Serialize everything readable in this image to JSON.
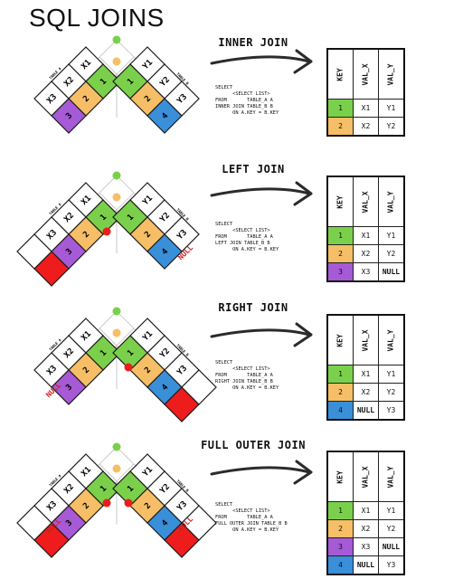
{
  "title": "SQL JOINS",
  "table_a_label": "TABLE A",
  "table_b_label": "TABLE B",
  "table_a_cells": [
    "1",
    "2",
    "3",
    "X1",
    "X2",
    "X3"
  ],
  "table_b_cells": [
    "1",
    "2",
    "4",
    "Y1",
    "Y2",
    "Y3"
  ],
  "colors": {
    "key1": "#7bd04b",
    "key2": "#f6be66",
    "key3": "#a65ad6",
    "key4": "#3a8fd9",
    "null_fill": "#ee1c1c",
    "null_text": "#cc1f1f",
    "node_green": "#7bd04b",
    "node_orange": "#f6be66",
    "node_red": "#ee1c1c"
  },
  "headers": [
    "KEY",
    "VAL_X",
    "VAL_Y"
  ],
  "null_label": "NULL",
  "sections": [
    {
      "id": "inner",
      "title": "INNER JOIN",
      "sql": [
        "SELECT",
        "      <SELECT LIST>",
        "FROM       TABLE_A A",
        "INNER JOIN TABLE_B B",
        "      ON A.KEY = B.KEY"
      ],
      "rows": [
        [
          "1",
          "X1",
          "Y1"
        ],
        [
          "2",
          "X2",
          "Y2"
        ]
      ],
      "row_colors": [
        "key1",
        "key2"
      ],
      "diagram": {
        "a_null": false,
        "b_null": false,
        "red_nodes": [],
        "a_label_visible": false
      }
    },
    {
      "id": "left",
      "title": "LEFT JOIN",
      "sql": [
        "SELECT",
        "      <SELECT LIST>",
        "FROM       TABLE_A A",
        "LEFT JOIN TABLE_B B",
        "      ON A.KEY = B.KEY"
      ],
      "rows": [
        [
          "1",
          "X1",
          "Y1"
        ],
        [
          "2",
          "X2",
          "Y2"
        ],
        [
          "3",
          "X3",
          "NULL"
        ]
      ],
      "row_colors": [
        "key1",
        "key2",
        "key3"
      ],
      "diagram": {
        "a_null": false,
        "b_null": true,
        "red_nodes": [
          "left"
        ],
        "a_label_visible": true
      }
    },
    {
      "id": "right",
      "title": "RIGHT JOIN",
      "sql": [
        "SELECT",
        "      <SELECT LIST>",
        "FROM       TABLE_A A",
        "RIGHT JOIN TABLE_B B",
        "      ON A.KEY = B.KEY"
      ],
      "rows": [
        [
          "1",
          "X1",
          "Y1"
        ],
        [
          "2",
          "X2",
          "Y2"
        ],
        [
          "4",
          "NULL",
          "Y3"
        ]
      ],
      "row_colors": [
        "key1",
        "key2",
        "key4"
      ],
      "diagram": {
        "a_null": true,
        "b_null": false,
        "red_nodes": [
          "right"
        ],
        "a_label_visible": true
      }
    },
    {
      "id": "full",
      "title": "FULL OUTER JOIN",
      "sql": [
        "SELECT",
        "      <SELECT LIST>",
        "FROM       TABLE_A A",
        "FULL OUTER JOIN TABLE_B B",
        "      ON A.KEY = B.KEY"
      ],
      "rows": [
        [
          "1",
          "X1",
          "Y1"
        ],
        [
          "2",
          "X2",
          "Y2"
        ],
        [
          "3",
          "X3",
          "NULL"
        ],
        [
          "4",
          "NULL",
          "Y3"
        ]
      ],
      "row_colors": [
        "key1",
        "key2",
        "key3",
        "key4"
      ],
      "diagram": {
        "a_null": true,
        "b_null": true,
        "red_nodes": [
          "left",
          "right"
        ],
        "a_label_visible": true
      }
    }
  ]
}
